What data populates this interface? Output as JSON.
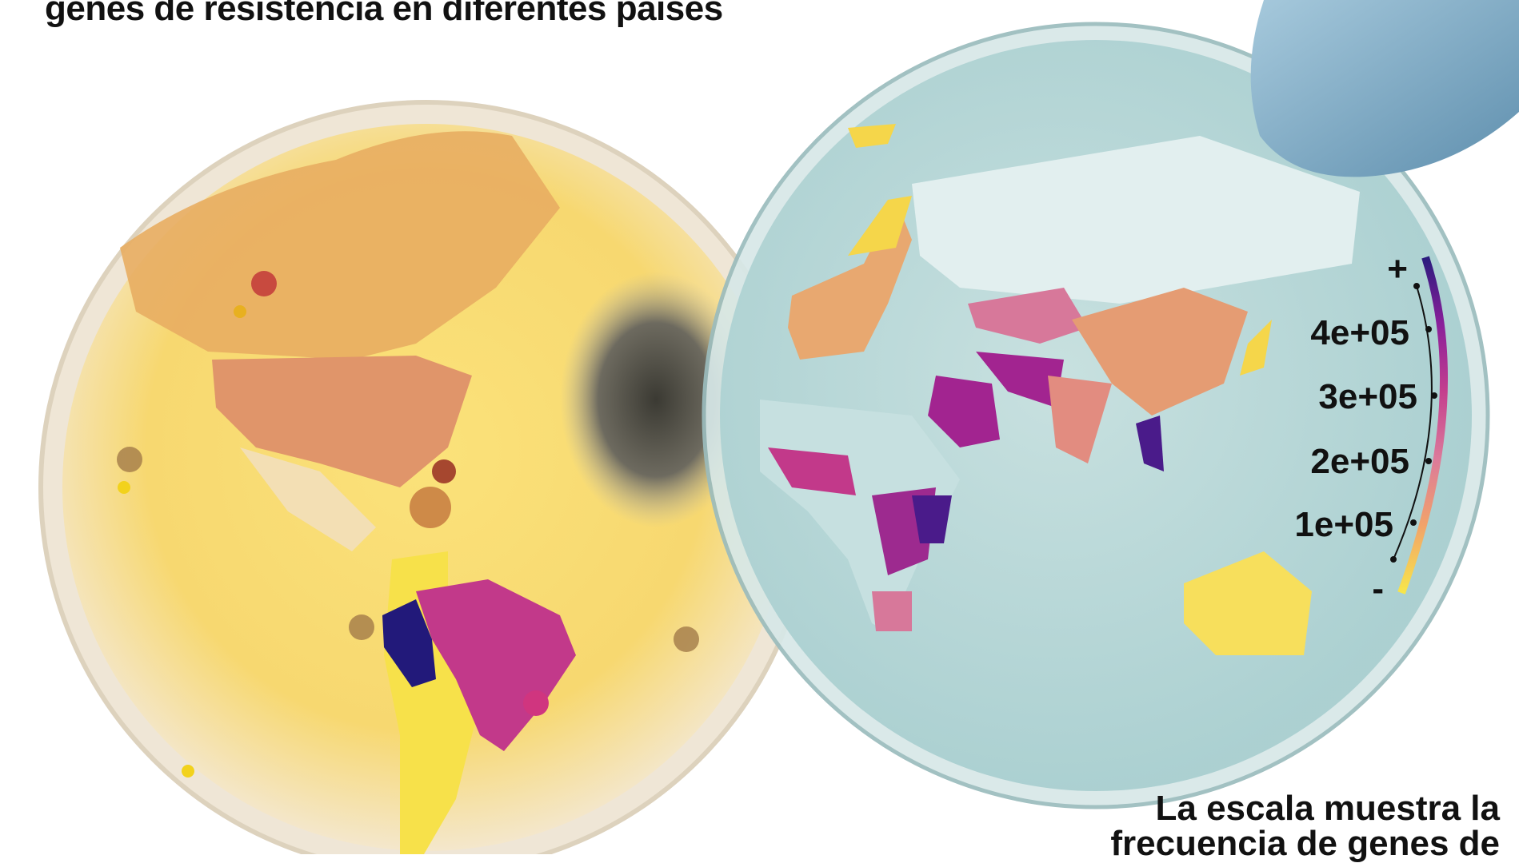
{
  "title": "genes de resistencia en diferentes países",
  "note_lines": [
    "La escala muestra la",
    "frecuencia de genes de"
  ],
  "legend": {
    "max_symbol": "+",
    "min_symbol": "-",
    "ticks": [
      "4e+05",
      "3e+05",
      "2e+05",
      "1e+05"
    ],
    "tick_values": [
      400000,
      300000,
      200000,
      100000
    ],
    "color_ramp": [
      "#f7e64a",
      "#f2a36a",
      "#dc7a9a",
      "#c43f8e",
      "#8a1f9a",
      "#2a1b7d"
    ]
  },
  "colors": {
    "left_dish_agar": "#f6dc8a",
    "right_dish_agar": "#b9d8d8",
    "peru": "#22197a",
    "brazil": "#c2398a",
    "usa": "#e0956a",
    "canada": "#e8ad62",
    "china": "#e59c73",
    "australia": "#f7df5c"
  }
}
